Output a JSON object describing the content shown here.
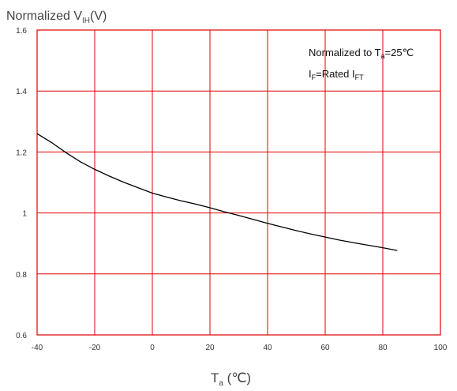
{
  "chart_data": {
    "type": "line",
    "title": "",
    "ylabel": {
      "main": "Normalized V",
      "sub": "IH",
      "suffix": "(V)"
    },
    "xlabel": {
      "main": "T",
      "sub": "a",
      "suffix": " (℃)"
    },
    "xlim": [
      -40,
      100
    ],
    "ylim": [
      0.6,
      1.6
    ],
    "xticks": [
      -40,
      -20,
      0,
      20,
      40,
      60,
      80,
      100
    ],
    "yticks": [
      0.6,
      0.8,
      1,
      1.2,
      1.4,
      1.6
    ],
    "x_tick_labels": [
      "-40",
      "-20",
      "0",
      "20",
      "40",
      "60",
      "80",
      "100"
    ],
    "y_tick_labels": [
      "0.6",
      "0.8",
      "1",
      "1.2",
      "1.4",
      "1.6"
    ],
    "grid": true,
    "grid_color": "#e00000",
    "line_color": "#000000",
    "series": [
      {
        "x": [
          -40,
          -35,
          -30,
          -25,
          -20,
          -15,
          -10,
          -5,
          0,
          5,
          10,
          15,
          20,
          25,
          30,
          35,
          40,
          45,
          50,
          55,
          60,
          65,
          70,
          75,
          80,
          85
        ],
        "y": [
          1.26,
          1.231,
          1.198,
          1.168,
          1.143,
          1.121,
          1.101,
          1.083,
          1.065,
          1.052,
          1.04,
          1.029,
          1.017,
          1.004,
          0.992,
          0.979,
          0.966,
          0.954,
          0.942,
          0.931,
          0.921,
          0.911,
          0.902,
          0.894,
          0.886,
          0.877
        ]
      }
    ],
    "annotations": [
      {
        "position": "top-right",
        "parts": [
          "Normalized to T",
          "a",
          "=25℃"
        ]
      },
      {
        "position": "top-right",
        "parts": [
          "I",
          "F",
          "=Rated I",
          "FT"
        ]
      }
    ]
  }
}
